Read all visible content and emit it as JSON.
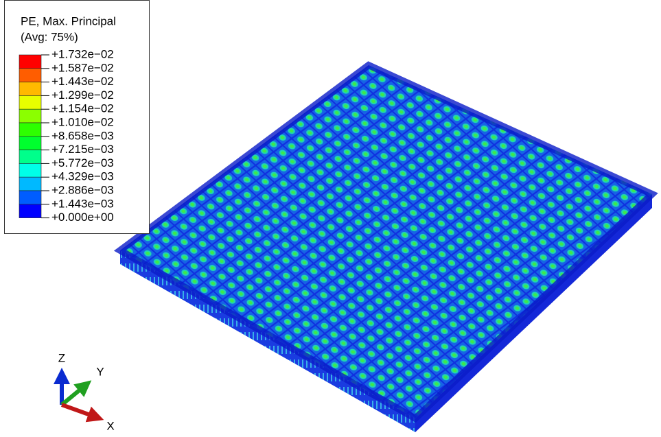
{
  "legend": {
    "title": "PE, Max. Principal",
    "subtitle": "(Avg: 75%)",
    "labels": [
      "+1.732e−02",
      "+1.587e−02",
      "+1.443e−02",
      "+1.299e−02",
      "+1.154e−02",
      "+1.010e−02",
      "+8.658e−03",
      "+7.215e−03",
      "+5.772e−03",
      "+4.329e−03",
      "+2.886e−03",
      "+1.443e−03",
      "+0.000e+00"
    ],
    "colors": [
      "#ff0000",
      "#ff5d00",
      "#ffb900",
      "#e8ff00",
      "#8bff00",
      "#2eff00",
      "#00ff2e",
      "#00ff8b",
      "#00ffe8",
      "#00b9ff",
      "#005dff",
      "#0000ff"
    ]
  },
  "triad": {
    "z": "Z",
    "y": "Y",
    "x": "X"
  }
}
